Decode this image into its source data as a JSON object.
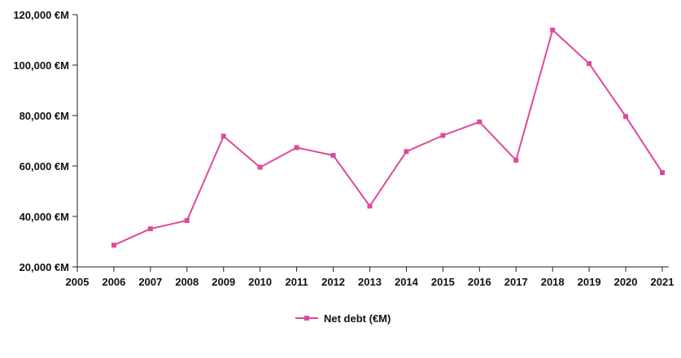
{
  "chart_data": {
    "type": "line",
    "x_ticks": [
      "2005",
      "2006",
      "2007",
      "2008",
      "2009",
      "2010",
      "2011",
      "2012",
      "2013",
      "2014",
      "2015",
      "2016",
      "2017",
      "2018",
      "2019",
      "2020",
      "2021"
    ],
    "x_range": [
      2005,
      2021
    ],
    "y_ticks": [
      "20,000 €M",
      "40,000 €M",
      "60,000 €M",
      "80,000 €M",
      "100,000 €M",
      "120,000 €M"
    ],
    "y_tick_values": [
      20000,
      40000,
      60000,
      80000,
      100000,
      120000
    ],
    "ylim": [
      20000,
      120000
    ],
    "grid": false,
    "legend_position": "bottom-center",
    "series": [
      {
        "name": "Net debt (€M)",
        "color": "#e0489b",
        "marker": "square",
        "x": [
          2006,
          2007,
          2008,
          2009,
          2010,
          2011,
          2012,
          2013,
          2014,
          2015,
          2016,
          2017,
          2018,
          2019,
          2020,
          2021
        ],
        "values": [
          28600,
          35100,
          38400,
          71800,
          59500,
          67300,
          64200,
          44100,
          65700,
          72100,
          77500,
          62300,
          113900,
          100600,
          79600,
          57400
        ]
      }
    ]
  }
}
